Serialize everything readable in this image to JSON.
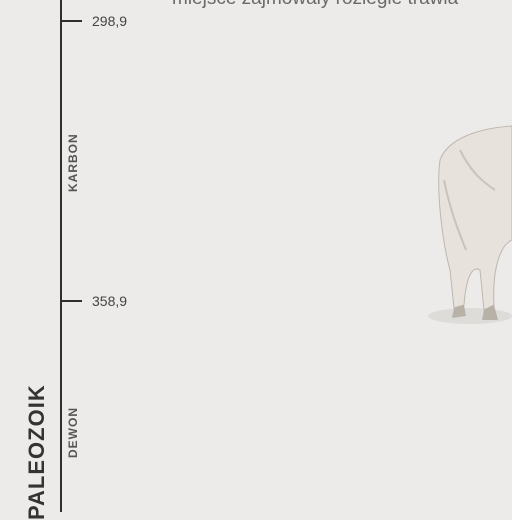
{
  "top_text": "miejsce zajmowały rozległe trawia",
  "ticks": [
    {
      "label": "298,9"
    },
    {
      "label": "358,9"
    }
  ],
  "periods": [
    {
      "label": "KARBON"
    },
    {
      "label": "DEWON"
    }
  ],
  "era": {
    "label": "PALEOZOIK"
  },
  "animal": {
    "name": "bison-illustration",
    "color": "#e7e2dc"
  }
}
